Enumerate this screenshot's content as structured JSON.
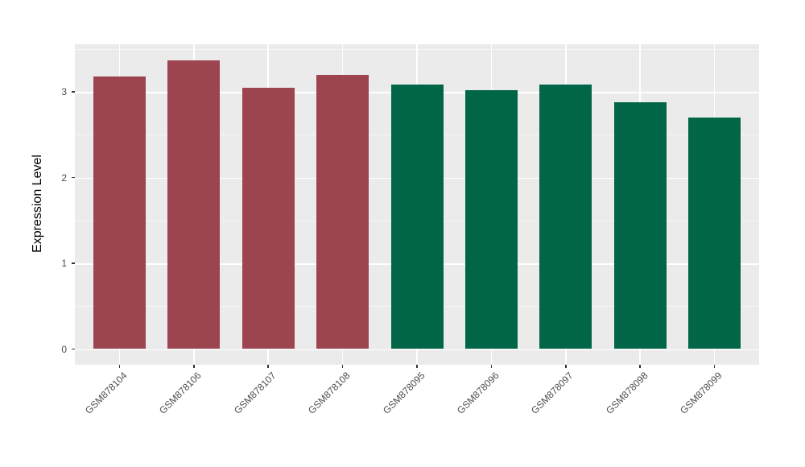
{
  "chart_data": {
    "type": "bar",
    "title": "",
    "xlabel": "",
    "ylabel": "Expression Level",
    "categories": [
      "GSM878104",
      "GSM878106",
      "GSM878107",
      "GSM878108",
      "GSM878095",
      "GSM878096",
      "GSM878097",
      "GSM878098",
      "GSM878099"
    ],
    "values": [
      3.18,
      3.37,
      3.05,
      3.2,
      3.08,
      3.02,
      3.08,
      2.88,
      2.7
    ],
    "groups": [
      "groupA",
      "groupB"
    ],
    "bar_groups": [
      "groupA",
      "groupA",
      "groupA",
      "groupA",
      "groupB",
      "groupB",
      "groupB",
      "groupB",
      "groupB"
    ],
    "group_colors": {
      "groupA": "#9C4450",
      "groupB": "#006647"
    },
    "yticks": [
      0,
      1,
      2,
      3
    ],
    "minor_yticks": [
      0.5,
      1.5,
      2.5,
      3.5
    ],
    "ylim": [
      -0.17,
      3.54
    ],
    "grid": true,
    "legend_position": "none",
    "theme": {
      "panel_background": "#EBEBEB",
      "grid_color": "#FFFFFF",
      "tick_color": "#333333",
      "tick_label_color": "#4D4D4D",
      "axis_title_color": "#000000",
      "outer_background": "#FFFFFF"
    }
  }
}
